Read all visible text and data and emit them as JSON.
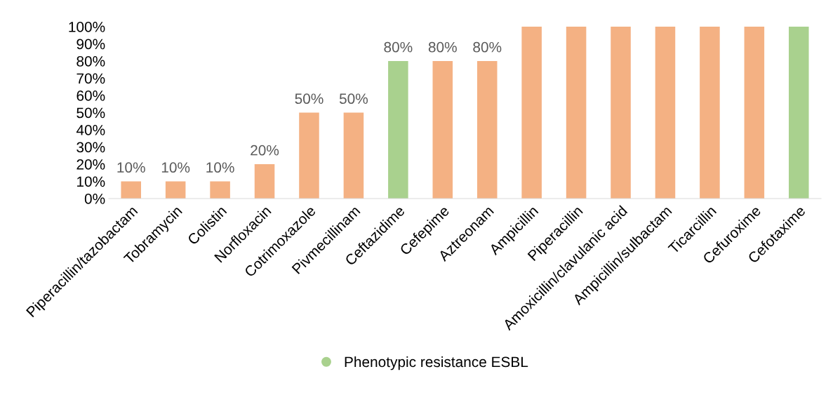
{
  "chart_data": {
    "type": "bar",
    "categories": [
      "Piperacillin/tazobactam",
      "Tobramycin",
      "Colistin",
      "Norfloxacin",
      "Cotrimoxazole",
      "Pivmecillinam",
      "Ceftazidime",
      "Cefepime",
      "Aztreonam",
      "Ampicillin",
      "Piperacillin",
      "Amoxicillin/clavulanic acid",
      "Ampicillin/sulbactam",
      "Ticarcillin",
      "Cefuroxime",
      "Cefotaxime"
    ],
    "series": [
      {
        "color": "#f4b183",
        "values": [
          10,
          10,
          10,
          20,
          50,
          50,
          null,
          80,
          80,
          100,
          100,
          100,
          100,
          100,
          100,
          null
        ],
        "value_labels": [
          "10%",
          "10%",
          "10%",
          "20%",
          "50%",
          "50%",
          null,
          "80%",
          "80%",
          null,
          null,
          null,
          null,
          null,
          null,
          null
        ]
      },
      {
        "name": "Phenotypic resistance ESBL",
        "color": "#a9d18e",
        "values": [
          null,
          null,
          null,
          null,
          null,
          null,
          80,
          null,
          null,
          null,
          null,
          null,
          null,
          null,
          null,
          100
        ],
        "value_labels": [
          null,
          null,
          null,
          null,
          null,
          null,
          "80%",
          null,
          null,
          null,
          null,
          null,
          null,
          null,
          null,
          null
        ]
      }
    ],
    "ylim": [
      0,
      100
    ],
    "yticks": [
      {
        "value": 0,
        "label": "0%"
      },
      {
        "value": 10,
        "label": "10%"
      },
      {
        "value": 20,
        "label": "20%"
      },
      {
        "value": 30,
        "label": "30%"
      },
      {
        "value": 40,
        "label": "40%"
      },
      {
        "value": 50,
        "label": "50%"
      },
      {
        "value": 60,
        "label": "60%"
      },
      {
        "value": 70,
        "label": "70%"
      },
      {
        "value": 80,
        "label": "80%"
      },
      {
        "value": 90,
        "label": "90%"
      },
      {
        "value": 100,
        "label": "100%"
      }
    ],
    "legend": "bottom",
    "grid": false
  }
}
